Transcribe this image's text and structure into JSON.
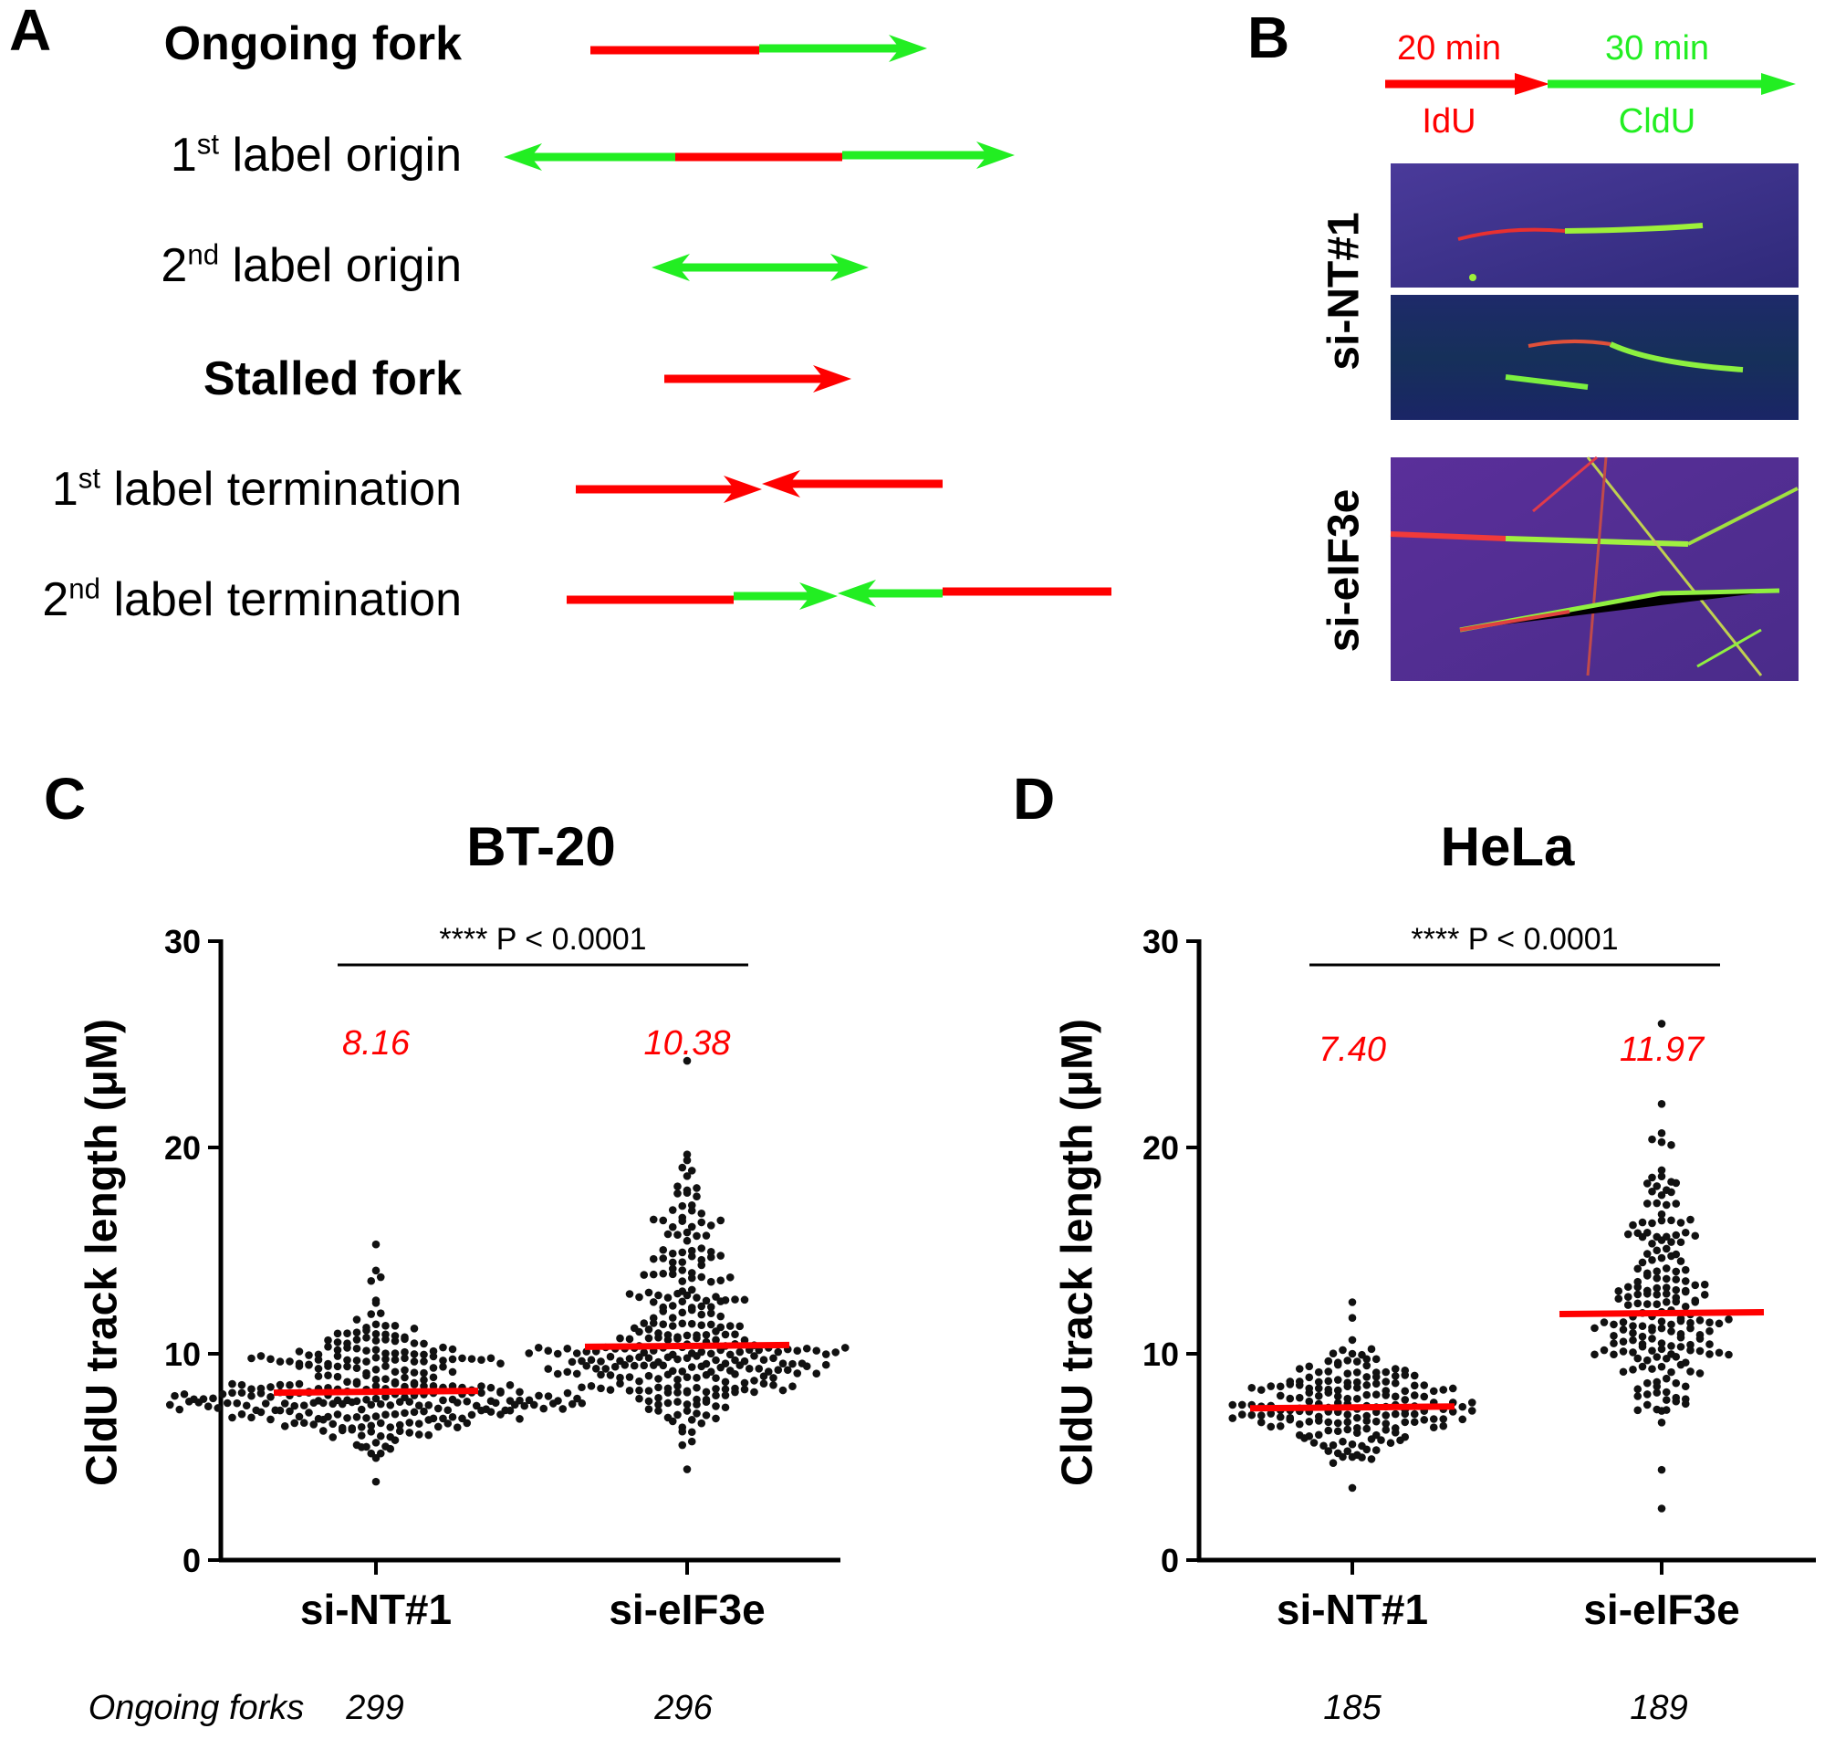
{
  "panel_a": {
    "letter": "A",
    "rows": [
      {
        "pre": "Ongoing fork",
        "sup": "",
        "post": "",
        "bold": true
      },
      {
        "pre": "1",
        "sup": "st",
        "post": " label origin",
        "bold": false
      },
      {
        "pre": "2",
        "sup": "nd",
        "post": " label origin",
        "bold": false
      },
      {
        "pre": "Stalled fork",
        "sup": "",
        "post": "",
        "bold": true
      },
      {
        "pre": "1",
        "sup": "st",
        "post": " label termination",
        "bold": false
      },
      {
        "pre": "2",
        "sup": "nd",
        "post": " label termination",
        "bold": false
      }
    ],
    "colors": {
      "first_label": "#ff0000",
      "second_label": "#22ee22"
    }
  },
  "panel_b": {
    "letter": "B",
    "first_time": "20 min",
    "second_time": "30 min",
    "first_analog": "IdU",
    "second_analog": "CldU",
    "conditions": [
      "si-NT#1",
      "si-eIF3e"
    ]
  },
  "chart_data": [
    {
      "type": "scatter",
      "panel": "C",
      "title": "BT-20",
      "ylabel": "CldU track length (μM)",
      "ylim": [
        0,
        30
      ],
      "yticks": [
        "0",
        "10",
        "20",
        "30"
      ],
      "categories": [
        "si-NT#1",
        "si-eIF3e"
      ],
      "means": [
        8.16,
        10.38
      ],
      "mean_labels": [
        "8.16",
        "10.38"
      ],
      "approx_range": [
        [
          3.8,
          15.3
        ],
        [
          4.4,
          24.2
        ]
      ],
      "n": [
        299,
        296
      ],
      "n_labels": [
        "299",
        "296"
      ],
      "row_label": "Ongoing forks",
      "significance": "**** P < 0.0001",
      "mean_color": "#ff0000"
    },
    {
      "type": "scatter",
      "panel": "D",
      "title": "HeLa",
      "ylabel": "CldU track length (μM)",
      "ylim": [
        0,
        30
      ],
      "yticks": [
        "0",
        "10",
        "20",
        "30"
      ],
      "categories": [
        "si-NT#1",
        "si-eIF3e"
      ],
      "means": [
        7.4,
        11.97
      ],
      "mean_labels": [
        "7.40",
        "11.97"
      ],
      "approx_range": [
        [
          3.5,
          12.5
        ],
        [
          2.5,
          26.0
        ]
      ],
      "n": [
        185,
        189
      ],
      "n_labels": [
        "185",
        "189"
      ],
      "significance": "**** P < 0.0001",
      "mean_color": "#ff0000"
    }
  ]
}
